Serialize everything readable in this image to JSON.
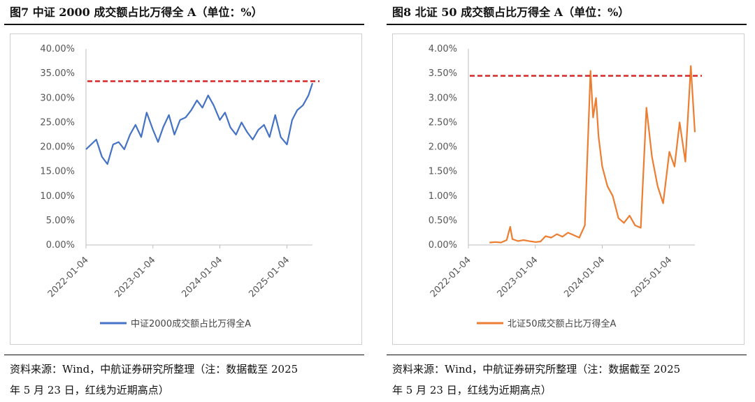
{
  "charts": [
    {
      "figure_title": "图7  中证 2000 成交额占比万得全 A（单位：%）",
      "source_line1": "资料来源：Wind，中航证券研究所整理（注：数据截至 2025",
      "source_line2": "年 5 月 23 日，红线为近期高点）",
      "line_color": "#4472c4",
      "ref_color": "#d62728"
    },
    {
      "figure_title": "图8  北证 50 成交额占比万得全 A（单位：%）",
      "source_line1": "资料来源：Wind，中航证券研究所整理（注：数据截至 2025",
      "source_line2": "年 5 月 23 日，红线为近期高点）",
      "line_color": "#ed7d31",
      "ref_color": "#d62728"
    }
  ],
  "chart_data": [
    {
      "type": "line",
      "title": "图7  中证 2000 成交额占比万得全 A（单位：%）",
      "xlabel": "",
      "ylabel": "",
      "x_ticks": [
        "2022-01-04",
        "2023-01-04",
        "2024-01-04",
        "2025-01-04"
      ],
      "x_range": [
        "2022-01-04",
        "2025-05-23"
      ],
      "y_ticks": [
        "0.00%",
        "5.00%",
        "10.00%",
        "15.00%",
        "20.00%",
        "25.00%",
        "30.00%",
        "35.00%",
        "40.00%"
      ],
      "ylim": [
        0,
        40
      ],
      "grid": false,
      "legend_position": "bottom",
      "reference_line": 33.4,
      "series": [
        {
          "name": "中证2000成交额占比万得全A",
          "x": [
            "2022-01-04",
            "2022-02-01",
            "2022-03-01",
            "2022-04-01",
            "2022-05-01",
            "2022-06-01",
            "2022-07-01",
            "2022-08-01",
            "2022-09-01",
            "2022-10-01",
            "2022-11-01",
            "2022-12-01",
            "2023-01-04",
            "2023-02-01",
            "2023-03-01",
            "2023-04-01",
            "2023-05-01",
            "2023-06-01",
            "2023-07-01",
            "2023-08-01",
            "2023-09-01",
            "2023-10-01",
            "2023-11-01",
            "2023-12-01",
            "2024-01-04",
            "2024-02-01",
            "2024-03-01",
            "2024-04-01",
            "2024-05-01",
            "2024-06-01",
            "2024-07-01",
            "2024-08-01",
            "2024-09-01",
            "2024-10-01",
            "2024-11-01",
            "2024-12-01",
            "2025-01-04",
            "2025-02-01",
            "2025-03-01",
            "2025-04-01",
            "2025-05-01",
            "2025-05-23"
          ],
          "values": [
            19.5,
            20.5,
            21.5,
            18.0,
            16.5,
            20.5,
            21.0,
            19.5,
            22.5,
            24.5,
            22.0,
            27.0,
            23.5,
            21.0,
            24.0,
            26.5,
            22.5,
            25.5,
            26.0,
            27.5,
            29.5,
            28.0,
            30.5,
            28.5,
            25.5,
            27.0,
            24.0,
            22.5,
            25.0,
            23.0,
            21.5,
            23.5,
            24.5,
            22.0,
            26.5,
            22.0,
            20.5,
            25.5,
            27.5,
            28.5,
            30.5,
            33.0
          ]
        }
      ]
    },
    {
      "type": "line",
      "title": "图8  北证 50 成交额占比万得全 A（单位：%）",
      "xlabel": "",
      "ylabel": "",
      "x_ticks": [
        "2022-01-04",
        "2023-01-04",
        "2024-01-04",
        "2025-01-04"
      ],
      "x_range": [
        "2022-01-04",
        "2025-05-23"
      ],
      "y_ticks": [
        "0.00%",
        "0.50%",
        "1.00%",
        "1.50%",
        "2.00%",
        "2.50%",
        "3.00%",
        "3.50%",
        "4.00%"
      ],
      "ylim": [
        0,
        4
      ],
      "grid": false,
      "legend_position": "bottom",
      "reference_line": 3.45,
      "series": [
        {
          "name": "北证50成交额占比万得全A",
          "x": [
            "2022-04-29",
            "2022-06-01",
            "2022-07-01",
            "2022-08-01",
            "2022-08-20",
            "2022-09-01",
            "2022-10-01",
            "2022-11-01",
            "2022-12-01",
            "2023-01-04",
            "2023-02-01",
            "2023-03-01",
            "2023-04-01",
            "2023-05-01",
            "2023-06-01",
            "2023-07-01",
            "2023-08-01",
            "2023-09-01",
            "2023-10-01",
            "2023-11-01",
            "2023-11-15",
            "2023-12-01",
            "2023-12-15",
            "2024-01-04",
            "2024-02-01",
            "2024-03-01",
            "2024-04-01",
            "2024-05-01",
            "2024-06-01",
            "2024-07-01",
            "2024-08-01",
            "2024-09-01",
            "2024-10-01",
            "2024-11-01",
            "2024-12-01",
            "2025-01-04",
            "2025-02-01",
            "2025-03-01",
            "2025-04-01",
            "2025-05-01",
            "2025-05-23"
          ],
          "values": [
            0.05,
            0.06,
            0.05,
            0.1,
            0.37,
            0.12,
            0.08,
            0.1,
            0.08,
            0.06,
            0.07,
            0.18,
            0.15,
            0.22,
            0.17,
            0.25,
            0.2,
            0.15,
            0.4,
            3.55,
            2.6,
            3.0,
            2.2,
            1.6,
            1.2,
            1.0,
            0.55,
            0.45,
            0.6,
            0.4,
            0.35,
            2.8,
            1.8,
            1.2,
            0.85,
            1.9,
            1.6,
            2.5,
            1.7,
            3.65,
            2.3
          ]
        }
      ]
    }
  ]
}
